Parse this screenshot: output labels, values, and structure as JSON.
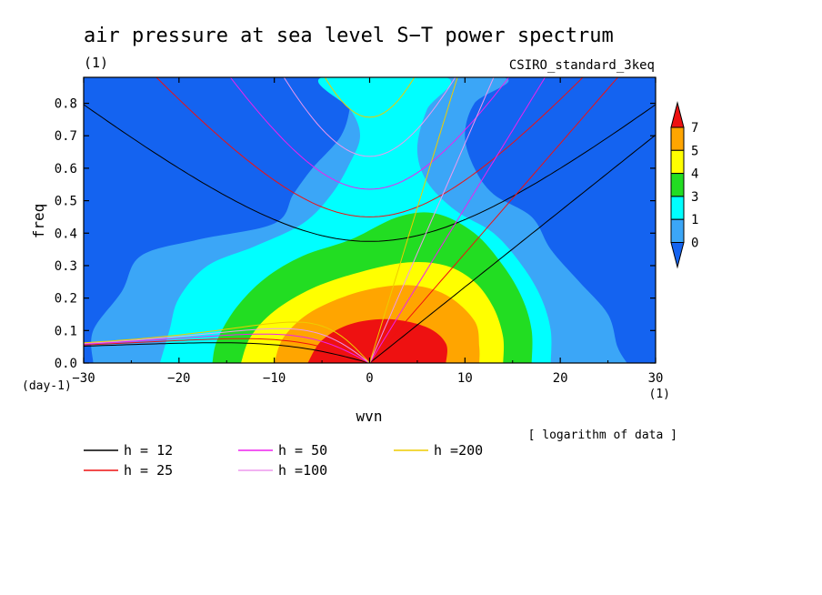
{
  "chart_data": {
    "type": "heatmap",
    "title": "air pressure at sea level S−T power spectrum",
    "units": "(1)",
    "model": "CSIRO_standard_3keq",
    "xlabel": "wvn",
    "ylabel": "freq",
    "x_units": "(1)",
    "y_units": "(day-1)",
    "xlim": [
      -30,
      30
    ],
    "ylim": [
      0,
      0.88
    ],
    "xticks": [
      -30,
      -20,
      -10,
      0,
      10,
      20,
      30
    ],
    "yticks": [
      0.0,
      0.1,
      0.2,
      0.3,
      0.4,
      0.5,
      0.6,
      0.7,
      0.8
    ],
    "note": "[ logarithm of data ]",
    "colorbar": {
      "levels": [
        0,
        1,
        3,
        4,
        5,
        7
      ],
      "labels": [
        "0",
        "1",
        "3",
        "4",
        "5",
        "7"
      ],
      "colors": [
        "#1463f0",
        "#3ba6f7",
        "#00ffff",
        "#22dd22",
        "#ffff00",
        "#ffa500",
        "#ee1111"
      ]
    },
    "background_color": "#1463f0",
    "contours": [
      {
        "level": 0,
        "color": "#3ba6f7",
        "points": [
          [
            -29,
            0
          ],
          [
            -29,
            0.1
          ],
          [
            -26,
            0.22
          ],
          [
            -24,
            0.33
          ],
          [
            -18,
            0.38
          ],
          [
            -10,
            0.43
          ],
          [
            -8,
            0.52
          ],
          [
            -6,
            0.6
          ],
          [
            -3,
            0.7
          ],
          [
            -2,
            0.8
          ],
          [
            -2,
            0.88
          ],
          [
            14,
            0.88
          ],
          [
            11,
            0.8
          ],
          [
            10,
            0.7
          ],
          [
            11,
            0.6
          ],
          [
            13,
            0.52
          ],
          [
            17,
            0.45
          ],
          [
            19,
            0.35
          ],
          [
            22,
            0.25
          ],
          [
            25,
            0.15
          ],
          [
            26,
            0.05
          ],
          [
            27,
            0
          ]
        ]
      },
      {
        "level": 1,
        "color": "#00ffff",
        "points": [
          [
            -22,
            0
          ],
          [
            -21,
            0.1
          ],
          [
            -20,
            0.2
          ],
          [
            -17,
            0.3
          ],
          [
            -12,
            0.36
          ],
          [
            -7,
            0.43
          ],
          [
            -4,
            0.52
          ],
          [
            -2,
            0.62
          ],
          [
            -1,
            0.7
          ],
          [
            -2,
            0.78
          ],
          [
            -5,
            0.88
          ],
          [
            8,
            0.88
          ],
          [
            6,
            0.78
          ],
          [
            5,
            0.66
          ],
          [
            6,
            0.56
          ],
          [
            9,
            0.47
          ],
          [
            13,
            0.4
          ],
          [
            16,
            0.3
          ],
          [
            18,
            0.2
          ],
          [
            19,
            0.1
          ],
          [
            19,
            0
          ]
        ]
      },
      {
        "level": 3,
        "color": "#22dd22",
        "points": [
          [
            -16.5,
            0
          ],
          [
            -16,
            0.07
          ],
          [
            -14,
            0.17
          ],
          [
            -11,
            0.26
          ],
          [
            -7,
            0.33
          ],
          [
            -2,
            0.38
          ],
          [
            3,
            0.45
          ],
          [
            7,
            0.46
          ],
          [
            11,
            0.4
          ],
          [
            14,
            0.3
          ],
          [
            16,
            0.2
          ],
          [
            17,
            0.1
          ],
          [
            17,
            0
          ]
        ]
      },
      {
        "level": 4,
        "color": "#ffff00",
        "points": [
          [
            -13.5,
            0
          ],
          [
            -12.5,
            0.08
          ],
          [
            -10,
            0.16
          ],
          [
            -6,
            0.23
          ],
          [
            -1,
            0.28
          ],
          [
            4,
            0.31
          ],
          [
            8,
            0.3
          ],
          [
            11,
            0.25
          ],
          [
            13,
            0.17
          ],
          [
            14,
            0.08
          ],
          [
            14,
            0
          ]
        ]
      },
      {
        "level": 5,
        "color": "#ffa500",
        "points": [
          [
            -10,
            0
          ],
          [
            -9,
            0.08
          ],
          [
            -6,
            0.16
          ],
          [
            -1,
            0.22
          ],
          [
            4,
            0.24
          ],
          [
            8,
            0.21
          ],
          [
            11,
            0.13
          ],
          [
            11.5,
            0.05
          ],
          [
            11.5,
            0
          ]
        ]
      },
      {
        "level": 7,
        "color": "#ee1111",
        "points": [
          [
            -6.5,
            0
          ],
          [
            -5,
            0.07
          ],
          [
            -2,
            0.12
          ],
          [
            2,
            0.135
          ],
          [
            6,
            0.11
          ],
          [
            8,
            0.06
          ],
          [
            8,
            0
          ]
        ]
      }
    ],
    "dispersion_curves": [
      {
        "name": "h = 12",
        "label": "h = 12",
        "equivalent_depth": 12,
        "color": "#000000"
      },
      {
        "name": "h = 25",
        "label": "h = 25",
        "equivalent_depth": 25,
        "color": "#ee1111"
      },
      {
        "name": "h = 50",
        "label": "h = 50",
        "equivalent_depth": 50,
        "color": "#ee22ee"
      },
      {
        "name": "h =100",
        "label": "h =100",
        "equivalent_depth": 100,
        "color": "#ee99ee"
      },
      {
        "name": "h =200",
        "label": "h =200",
        "equivalent_depth": 200,
        "color": "#eecc00"
      }
    ]
  }
}
